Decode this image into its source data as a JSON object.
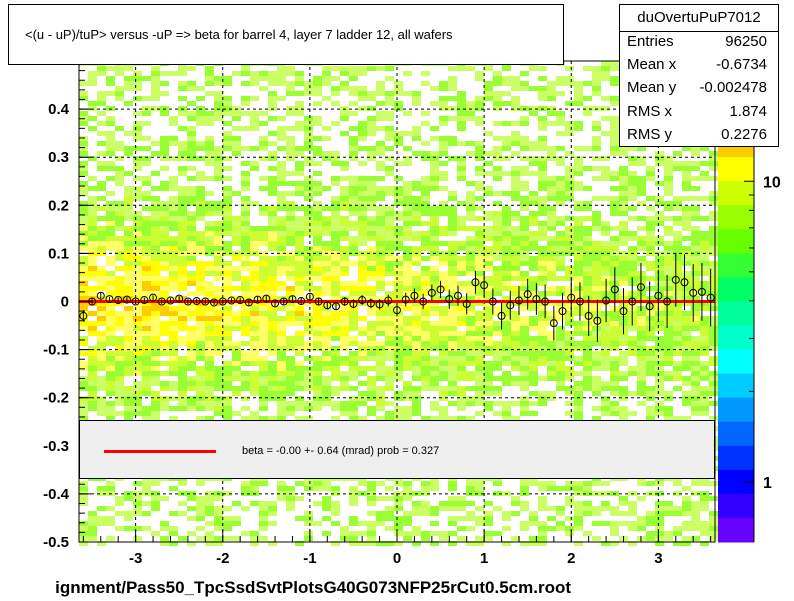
{
  "title": "<(u - uP)/tuP> versus  -uP => beta for barrel 4, layer 7 ladder 12, all wafers",
  "stats": {
    "name": "duOvertuPuP7012",
    "rows": [
      {
        "label": "Entries",
        "value": "96250"
      },
      {
        "label": "Mean x",
        "value": "-0.6734"
      },
      {
        "label": "Mean y",
        "value": "-0.002478"
      },
      {
        "label": "RMS x",
        "value": "1.874"
      },
      {
        "label": "RMS y",
        "value": "0.2276"
      }
    ]
  },
  "legend": {
    "text": "beta =   -0.00 +-  0.64 (mrad) prob = 0.327",
    "line_color": "#ff0000"
  },
  "footer": "ignment/Pass50_TpcSsdSvtPlotsG40G073NFP25rCut0.5cm.root",
  "colors": {
    "fit_line": "#ff0000",
    "grid": "#000000",
    "palette": [
      "#ff0000",
      "#ff6600",
      "#ff9900",
      "#ffcc00",
      "#ffff00",
      "#ccff00",
      "#99ff00",
      "#66ff00",
      "#33ff33",
      "#00ff66",
      "#00ff99",
      "#00ffcc",
      "#00ffff",
      "#00ccff",
      "#0099ff",
      "#0066ff",
      "#0033ff",
      "#0000ff",
      "#3300ff",
      "#6600ff"
    ],
    "map": [
      "#ffffff",
      "#ccff66",
      "#99ff33",
      "#ccff33",
      "#ffff66",
      "#ffff00",
      "#ffcc00",
      "#ff9900",
      "#ff6600"
    ]
  },
  "chart_data": {
    "type": "heatmap",
    "xlim": [
      -3.65,
      3.65
    ],
    "ylim": [
      -0.5,
      0.5
    ],
    "x_ticks": [
      -3,
      -2,
      -1,
      0,
      1,
      2,
      3
    ],
    "y_ticks": [
      -0.5,
      -0.4,
      -0.3,
      -0.2,
      -0.1,
      0,
      0.1,
      0.2,
      0.3,
      0.4
    ],
    "y_tick_labels": [
      "-0.5",
      "-0.4",
      "-0.3",
      "-0.2",
      "-0.1",
      "0",
      "0.1",
      "0.2",
      "0.3",
      "0.4"
    ],
    "x_tick_labels": [
      "-3",
      "-2",
      "-1",
      "0",
      "1",
      "2",
      "3"
    ],
    "colorbar_labels": [
      {
        "value": 1,
        "text": "1"
      },
      {
        "value": 10,
        "text": "10"
      }
    ],
    "grid": true,
    "fit": {
      "slope": 0.0,
      "intercept": 0.0
    },
    "profile": {
      "x": [
        -3.6,
        -3.5,
        -3.4,
        -3.3,
        -3.2,
        -3.1,
        -3.0,
        -2.9,
        -2.8,
        -2.7,
        -2.6,
        -2.5,
        -2.4,
        -2.3,
        -2.2,
        -2.1,
        -2.0,
        -1.9,
        -1.8,
        -1.7,
        -1.6,
        -1.5,
        -1.4,
        -1.3,
        -1.2,
        -1.1,
        -1.0,
        -0.9,
        -0.8,
        -0.7,
        -0.6,
        -0.5,
        -0.4,
        -0.3,
        -0.2,
        -0.1,
        0.0,
        0.1,
        0.2,
        0.3,
        0.4,
        0.5,
        0.6,
        0.7,
        0.8,
        0.9,
        1.0,
        1.1,
        1.2,
        1.3,
        1.4,
        1.5,
        1.6,
        1.7,
        1.8,
        1.9,
        2.0,
        2.1,
        2.2,
        2.3,
        2.4,
        2.5,
        2.6,
        2.7,
        2.8,
        2.9,
        3.0,
        3.1,
        3.2,
        3.3,
        3.4,
        3.5,
        3.6
      ],
      "y": [
        -0.03,
        0.0,
        0.012,
        0.005,
        0.003,
        0.004,
        0.0,
        0.003,
        0.008,
        0.0,
        0.002,
        0.006,
        0.0,
        0.001,
        0.0,
        -0.002,
        0.0,
        0.002,
        0.003,
        -0.002,
        0.004,
        0.006,
        -0.004,
        0.0,
        0.005,
        0.001,
        0.01,
        0.0,
        -0.008,
        -0.01,
        0.0,
        -0.005,
        0.003,
        -0.004,
        -0.006,
        0.002,
        -0.018,
        0.004,
        0.012,
        0.0,
        0.018,
        0.025,
        0.005,
        0.012,
        -0.005,
        0.04,
        0.034,
        0.0,
        -0.03,
        -0.008,
        0.002,
        0.015,
        0.005,
        0.0,
        -0.045,
        -0.02,
        0.008,
        0.0,
        -0.03,
        -0.04,
        0.002,
        0.025,
        -0.02,
        0.0,
        0.03,
        -0.01,
        0.012,
        0.0,
        0.045,
        0.04,
        0.018,
        0.02,
        0.008
      ],
      "err": [
        0.012,
        0.008,
        0.006,
        0.005,
        0.005,
        0.005,
        0.005,
        0.005,
        0.005,
        0.005,
        0.005,
        0.005,
        0.005,
        0.005,
        0.005,
        0.005,
        0.005,
        0.005,
        0.005,
        0.006,
        0.006,
        0.006,
        0.006,
        0.006,
        0.006,
        0.007,
        0.007,
        0.007,
        0.008,
        0.008,
        0.009,
        0.009,
        0.01,
        0.01,
        0.011,
        0.012,
        0.013,
        0.014,
        0.015,
        0.016,
        0.017,
        0.018,
        0.02,
        0.021,
        0.022,
        0.024,
        0.025,
        0.027,
        0.028,
        0.03,
        0.03,
        0.032,
        0.033,
        0.035,
        0.036,
        0.038,
        0.04,
        0.04,
        0.042,
        0.044,
        0.045,
        0.046,
        0.048,
        0.05,
        0.05,
        0.052,
        0.054,
        0.055,
        0.056,
        0.058,
        0.06,
        0.06,
        0.06
      ]
    }
  }
}
